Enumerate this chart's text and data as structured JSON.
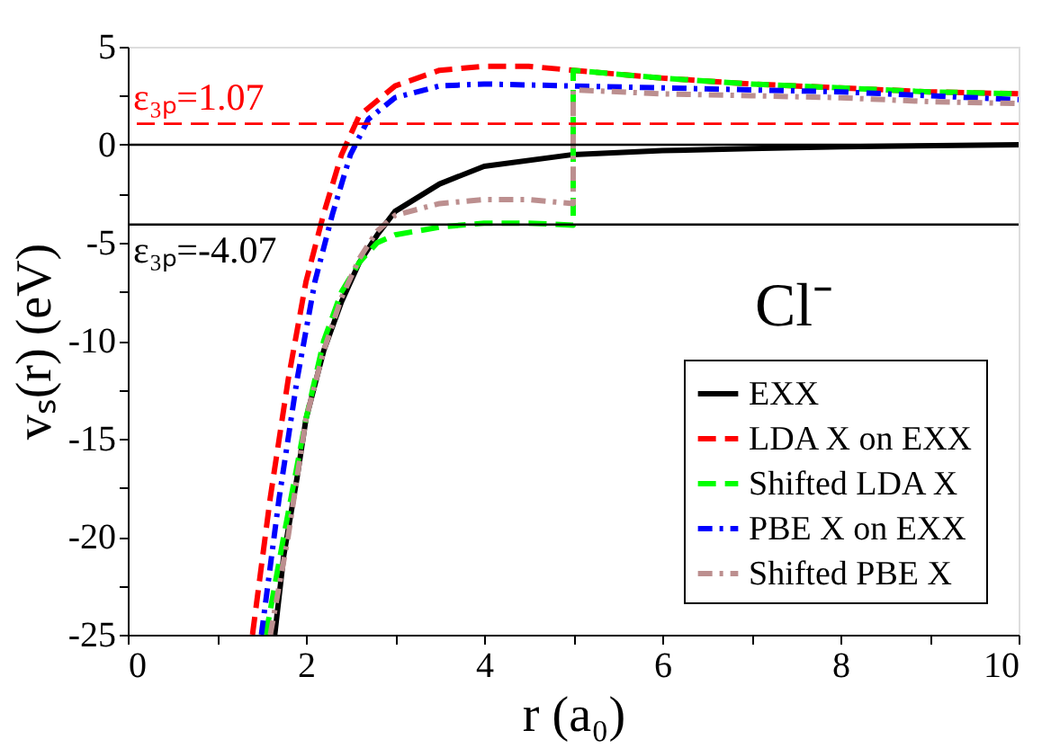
{
  "chart_data": {
    "type": "line",
    "xlabel": "r (a₀)",
    "ylabel": "vₛ(r) (eV)",
    "xlim": [
      0,
      10
    ],
    "ylim": [
      -25,
      5
    ],
    "xticks": [
      0,
      {
        "value": 1,
        "label": null
      },
      2,
      {
        "value": 3,
        "label": null
      },
      4,
      {
        "value": 5,
        "label": null
      },
      6,
      {
        "value": 7,
        "label": null
      },
      8,
      {
        "value": 9,
        "label": null
      },
      10
    ],
    "yticks": [
      -25,
      {
        "value": -22.5,
        "label": null
      },
      -20,
      {
        "value": -17.5,
        "label": null
      },
      -15,
      {
        "value": -12.5,
        "label": null
      },
      -10,
      {
        "value": -7.5,
        "label": null
      },
      -5,
      {
        "value": -2.5,
        "label": null
      },
      0,
      {
        "value": 2.5,
        "label": null
      },
      5
    ],
    "grid": false,
    "legend": "bottom right",
    "series": [
      {
        "name": "EXX",
        "color": "#000000",
        "line_style": "solid",
        "x": [
          1.65,
          1.75,
          1.9,
          2.0,
          2.2,
          2.4,
          2.6,
          2.8,
          3.0,
          3.5,
          4.0,
          5.0,
          6.0,
          7.0,
          8.0,
          10.0
        ],
        "values": [
          -25,
          -21,
          -17,
          -14,
          -10.5,
          -8,
          -6,
          -4.6,
          -3.4,
          -2.0,
          -1.1,
          -0.5,
          -0.3,
          -0.2,
          -0.1,
          0
        ]
      },
      {
        "name": "LDA X on EXX",
        "color": "#ff0000",
        "line_style": "dashed",
        "x": [
          1.4,
          1.6,
          1.8,
          2.0,
          2.2,
          2.4,
          2.6,
          3.0,
          3.5,
          4.0,
          4.5,
          5.0,
          6.0,
          7.0,
          8.0,
          9.0,
          10.0
        ],
        "values": [
          -25,
          -18,
          -12,
          -7,
          -3.5,
          -0.5,
          1.5,
          3.0,
          3.8,
          4.0,
          4.0,
          3.8,
          3.4,
          3.1,
          2.9,
          2.7,
          2.6
        ]
      },
      {
        "name": "Shifted LDA X",
        "color": "#00ff00",
        "line_style": "dashed",
        "x": [
          1.55,
          1.75,
          2.0,
          2.2,
          2.4,
          2.6,
          2.8,
          3.0,
          3.5,
          4.0,
          4.5,
          5.0,
          5.0,
          6.0,
          7.0,
          8.0,
          9.0,
          10.0
        ],
        "values": [
          -25,
          -20,
          -14,
          -10,
          -7.5,
          -6,
          -5,
          -4.6,
          -4.2,
          -4.0,
          -4.0,
          -4.1,
          3.8,
          3.4,
          3.1,
          2.9,
          2.7,
          2.6
        ]
      },
      {
        "name": "PBE X on EXX",
        "color": "#0000ff",
        "line_style": "dashdot",
        "x": [
          1.5,
          1.7,
          1.9,
          2.1,
          2.3,
          2.5,
          2.7,
          3.0,
          3.5,
          4.0,
          5.0,
          6.0,
          7.0,
          8.0,
          9.0,
          10.0
        ],
        "values": [
          -25,
          -18,
          -12,
          -7,
          -3.5,
          -0.5,
          1.3,
          2.4,
          3.0,
          3.1,
          3.0,
          2.9,
          2.8,
          2.7,
          2.5,
          2.3
        ]
      },
      {
        "name": "Shifted PBE X",
        "color": "#bc8f8f",
        "line_style": "dashdot",
        "x": [
          1.6,
          1.8,
          2.0,
          2.2,
          2.4,
          2.6,
          2.8,
          3.0,
          3.5,
          4.0,
          4.5,
          5.0,
          5.0,
          6.0,
          7.0,
          8.0,
          9.0,
          10.0
        ],
        "values": [
          -25,
          -20,
          -14,
          -10.5,
          -7.8,
          -5.8,
          -4.4,
          -3.6,
          -3.0,
          -2.8,
          -2.8,
          -3.0,
          2.8,
          2.6,
          2.5,
          2.4,
          2.2,
          2.1
        ]
      }
    ],
    "ref_lines": [
      {
        "axis": "y",
        "value": 0,
        "color": "#000000",
        "line_style": "solid"
      },
      {
        "axis": "y",
        "value": 1.07,
        "label": "ε₃ₚ=1.07",
        "color": "#ff0000",
        "line_style": "dashed"
      },
      {
        "axis": "y",
        "value": -4.07,
        "label": "ε₃ₚ=-4.07",
        "color": "#000000",
        "line_style": "solid"
      }
    ],
    "annotations": [
      "Cl⁻"
    ]
  }
}
